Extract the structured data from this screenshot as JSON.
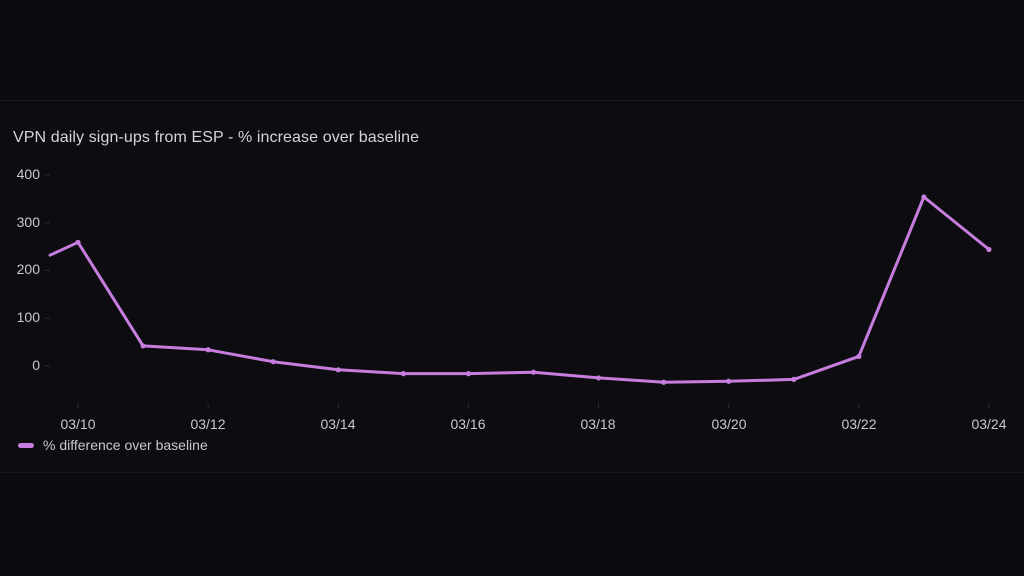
{
  "chart_data": {
    "type": "line",
    "title": "VPN daily sign-ups from ESP - % increase over baseline",
    "xlabel": "",
    "ylabel": "",
    "ylim": [
      -80,
      420
    ],
    "yticks": [
      400,
      300,
      200,
      100,
      0
    ],
    "xtick_labels": [
      "03/10",
      "03/12",
      "03/14",
      "03/16",
      "03/18",
      "03/20",
      "03/22",
      "03/24"
    ],
    "grid": false,
    "legend_position": "bottom-left",
    "series": [
      {
        "name": "% difference over baseline",
        "color": "#c77dde",
        "x": [
          "03/09 (partial)",
          "03/10",
          "03/11",
          "03/12",
          "03/13",
          "03/14",
          "03/15",
          "03/16",
          "03/17",
          "03/18",
          "03/19",
          "03/20",
          "03/21",
          "03/22",
          "03/23",
          "03/24"
        ],
        "values": [
          232,
          259,
          42,
          34,
          9,
          -8,
          -16,
          -16,
          -13,
          -25,
          -34,
          -32,
          -28,
          20,
          354,
          244
        ]
      }
    ]
  },
  "panel": {
    "title": "VPN daily sign-ups from ESP - % increase over baseline",
    "legend_label": "% difference over baseline"
  },
  "axis": {
    "y": [
      "400",
      "300",
      "200",
      "100",
      "0"
    ],
    "x": [
      "03/10",
      "03/12",
      "03/14",
      "03/16",
      "03/18",
      "03/20",
      "03/22",
      "03/24"
    ]
  }
}
